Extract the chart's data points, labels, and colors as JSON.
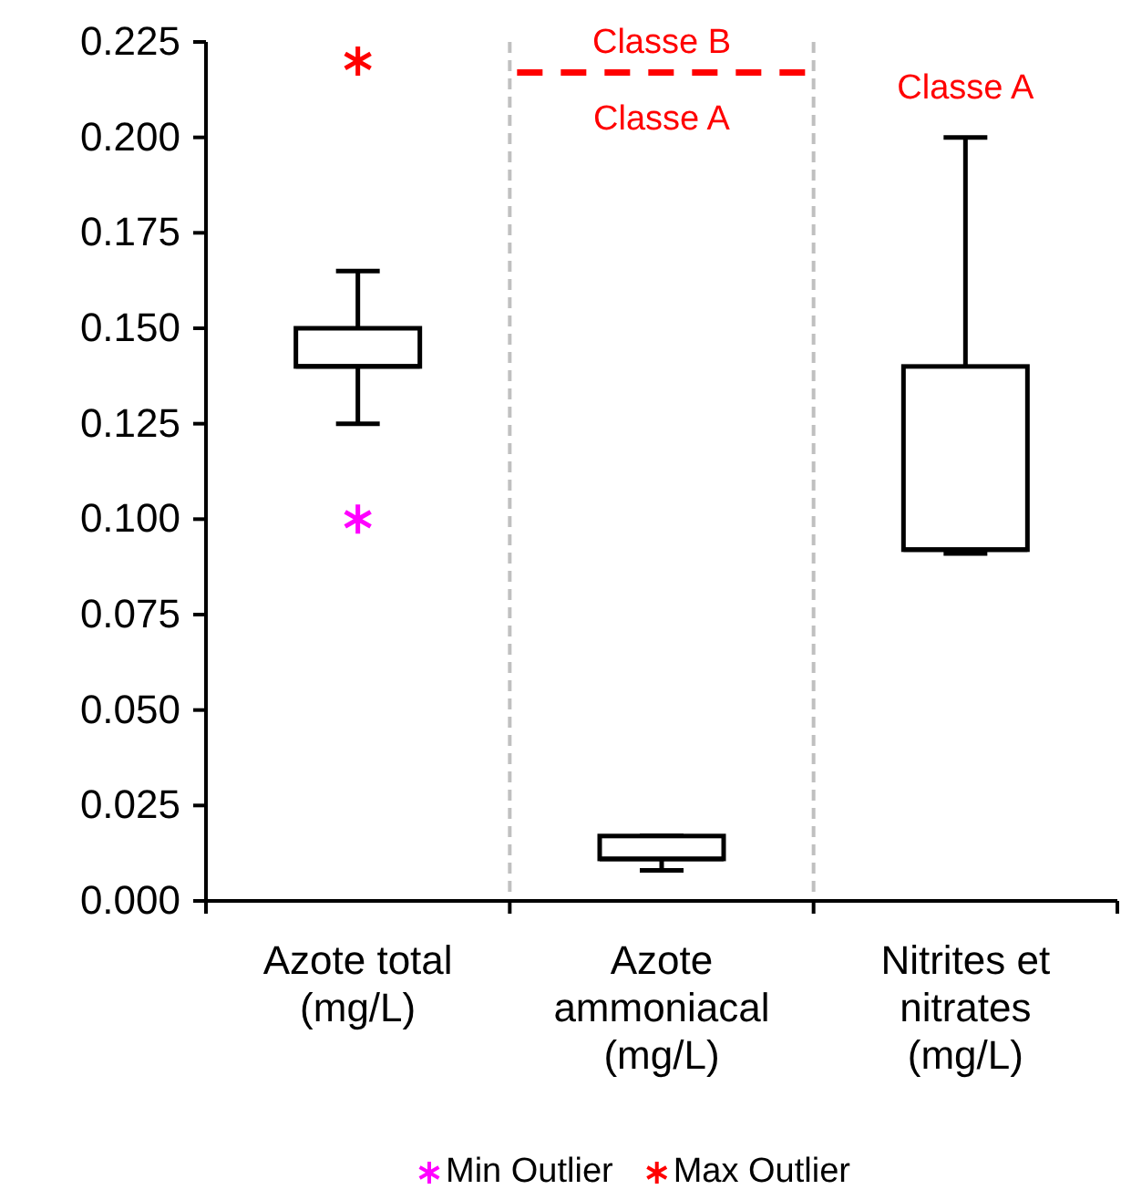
{
  "chart_data": {
    "type": "box",
    "categories": [
      "Azote total (mg/L)",
      "Azote ammoniacal (mg/L)",
      "Nitrites et nitrates (mg/L)"
    ],
    "boxes": [
      {
        "low": 0.125,
        "q1": 0.14,
        "median": 0.14,
        "q3": 0.15,
        "high": 0.165
      },
      {
        "low": 0.008,
        "q1": 0.011,
        "median": 0.011,
        "q3": 0.017,
        "high": 0.017
      },
      {
        "low": 0.091,
        "q1": 0.092,
        "median": 0.092,
        "q3": 0.14,
        "high": 0.2
      }
    ],
    "series": [
      {
        "type": "scatter",
        "name": "Min Outlier",
        "color": "#ff00ff",
        "x": [
          "Azote total (mg/L)"
        ],
        "values": [
          0.1
        ]
      },
      {
        "type": "scatter",
        "name": "Max Outlier",
        "color": "#ff0000",
        "x": [
          "Azote total (mg/L)"
        ],
        "values": [
          0.22
        ]
      }
    ],
    "marker": "cross",
    "ylim": [
      0,
      0.225
    ],
    "yticks": [
      {
        "value": 0,
        "label": "0.000"
      },
      {
        "value": 0.025,
        "label": "0.025"
      },
      {
        "value": 0.05,
        "label": "0.050"
      },
      {
        "value": 0.075,
        "label": "0.075"
      },
      {
        "value": 0.1,
        "label": "0.100"
      },
      {
        "value": 0.125,
        "label": "0.125"
      },
      {
        "value": 0.15,
        "label": "0.150"
      },
      {
        "value": 0.175,
        "label": "0.175"
      },
      {
        "value": 0.2,
        "label": "0.200"
      },
      {
        "value": 0.225,
        "label": "0.225"
      }
    ],
    "grid": "x",
    "ref_lines": [
      {
        "axis": "y",
        "value": 0.217,
        "label": "Classe B",
        "color": "#ff0000",
        "line_style": "dashed"
      }
    ],
    "annotations": [
      "Classe A",
      "Classe A"
    ],
    "legend": "bottom"
  }
}
